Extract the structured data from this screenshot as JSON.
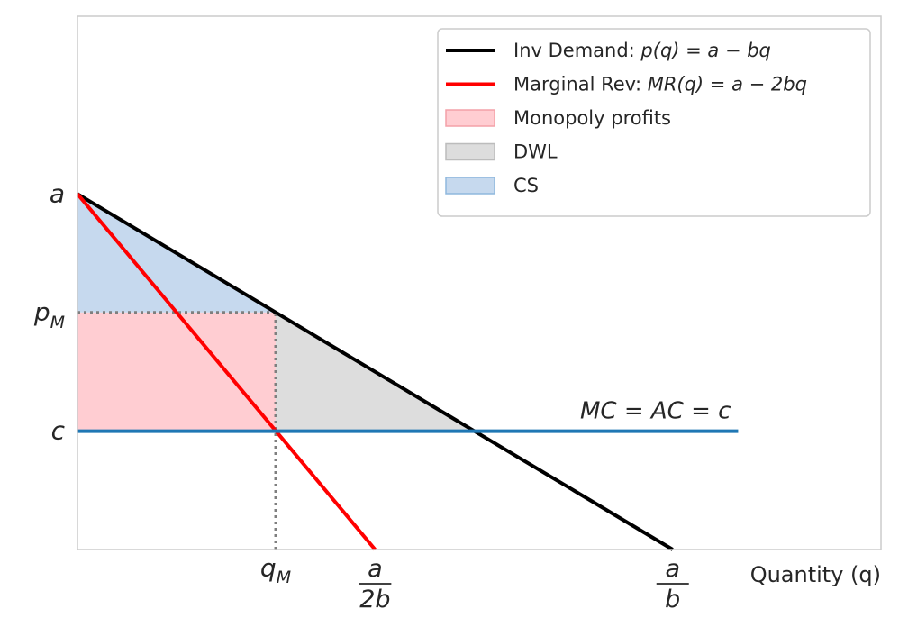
{
  "chart_data": {
    "type": "line",
    "xlabel": "Quantity (q)",
    "ylabel": "",
    "xlim": [
      0,
      1.35
    ],
    "ylim": [
      0,
      1.5
    ],
    "params": {
      "a": 1.0,
      "b": 1.0,
      "c": 0.333
    },
    "series": [
      {
        "name": "Inv Demand: p(q) = a − bq",
        "color": "#000000",
        "kind": "line",
        "x": [
          0,
          1.0
        ],
        "y": [
          1.0,
          0.0
        ]
      },
      {
        "name": "Marginal Rev: MR(q) = a − 2bq",
        "color": "#ff0000",
        "kind": "line",
        "x": [
          0,
          0.5
        ],
        "y": [
          1.0,
          0.0
        ]
      },
      {
        "name": "MC = AC = c",
        "color": "#1f77b4",
        "kind": "line",
        "x": [
          0,
          1.11
        ],
        "y": [
          0.333,
          0.333
        ]
      }
    ],
    "areas": [
      {
        "name": "Monopoly profits",
        "color": "#ffcdd2",
        "x": [
          0,
          0.333
        ],
        "y_low": 0.333,
        "y_high": 0.667
      },
      {
        "name": "DWL",
        "color": "#dddddd",
        "polygon": [
          [
            0.333,
            0.667
          ],
          [
            0.667,
            0.333
          ],
          [
            0.333,
            0.333
          ]
        ]
      },
      {
        "name": "CS",
        "color": "#c6d9ee",
        "polygon": [
          [
            0,
            1.0
          ],
          [
            0.333,
            0.667
          ],
          [
            0,
            0.667
          ]
        ]
      }
    ],
    "guides": [
      {
        "kind": "hline-dotted",
        "x": [
          0,
          0.333
        ],
        "y": 0.667
      },
      {
        "kind": "vline-dotted",
        "x": 0.333,
        "y": [
          0,
          0.667
        ]
      }
    ],
    "annotation": {
      "text": "MC = AC = c",
      "x": 1.11,
      "y": 0.333
    },
    "yticks": [
      {
        "value": 1.0,
        "label": "a"
      },
      {
        "value": 0.667,
        "label": "p",
        "sub": "M"
      },
      {
        "value": 0.333,
        "label": "c"
      }
    ],
    "xticks": [
      {
        "value": 0.333,
        "label": "q",
        "sub": "M"
      },
      {
        "value": 0.5,
        "num": "a",
        "den": "2b"
      },
      {
        "value": 1.0,
        "num": "a",
        "den": "b"
      }
    ],
    "legend": {
      "position": "top-right",
      "entries": [
        {
          "kind": "line",
          "color": "#000000",
          "prefix": "Inv Demand: ",
          "math": "p(q) = a − bq"
        },
        {
          "kind": "line",
          "color": "#ff0000",
          "prefix": "Marginal Rev: ",
          "math": "MR(q) = a − 2bq"
        },
        {
          "kind": "patch",
          "color": "#ffcdd2",
          "edge": "#f4a0a8",
          "prefix": "Monopoly profits",
          "math": ""
        },
        {
          "kind": "patch",
          "color": "#dddddd",
          "edge": "#bcbcbc",
          "prefix": "DWL",
          "math": ""
        },
        {
          "kind": "patch",
          "color": "#c6d9ee",
          "edge": "#8fb8dd",
          "prefix": "CS",
          "math": ""
        }
      ]
    },
    "grid": false
  }
}
